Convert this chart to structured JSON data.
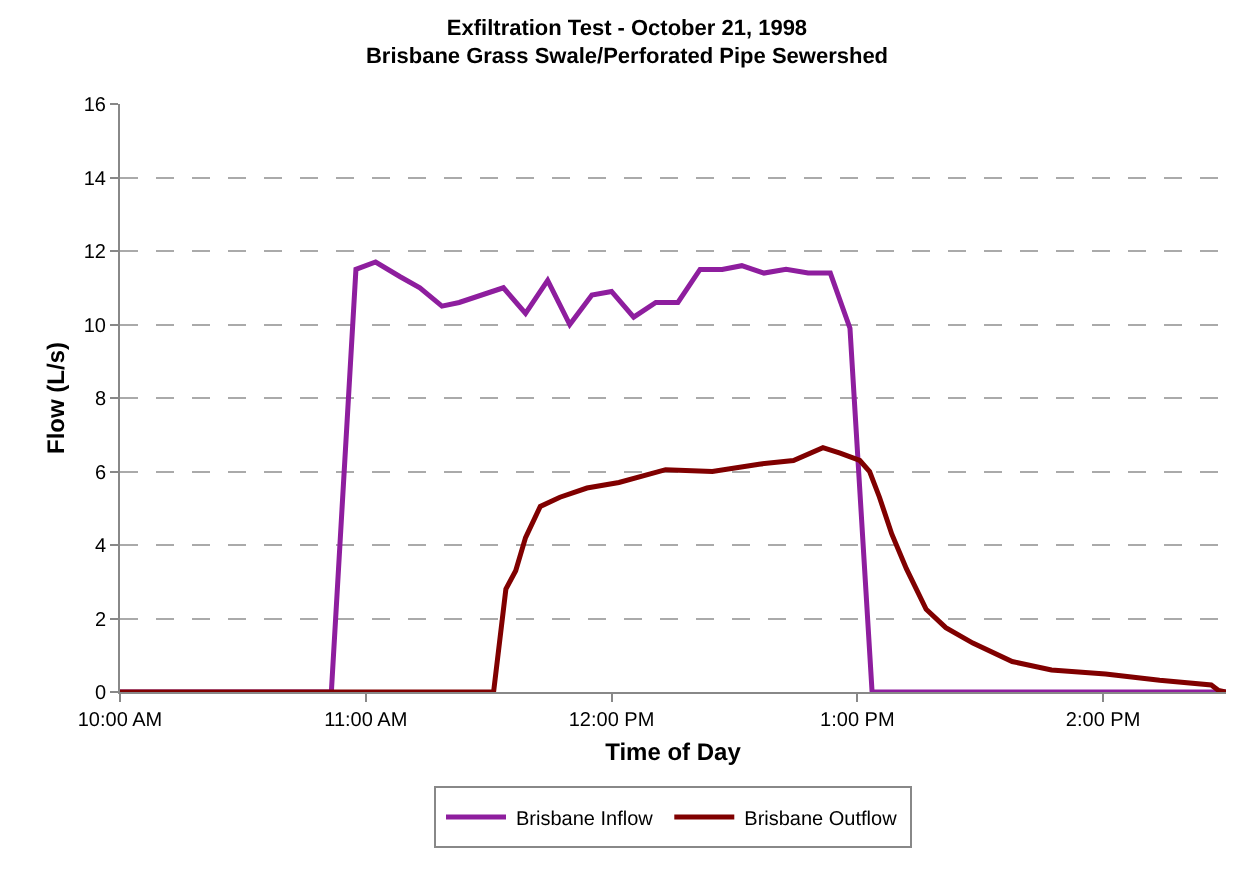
{
  "chart_data": {
    "type": "line",
    "title": "Exfiltration Test - October 21, 1998",
    "subtitle": "Brisbane Grass Swale/Perforated Pipe Sewershed",
    "xlabel": "Time of Day",
    "ylabel": "Flow (L/s)",
    "xlim": [
      10,
      14.5
    ],
    "xticks": [
      {
        "value": 10,
        "label": "10:00 AM"
      },
      {
        "value": 11,
        "label": "11:00 AM"
      },
      {
        "value": 12,
        "label": "12:00 PM"
      },
      {
        "value": 13,
        "label": "1:00 PM"
      },
      {
        "value": 14,
        "label": "2:00 PM"
      }
    ],
    "ylim": [
      0,
      16
    ],
    "yticks": [
      0,
      2,
      4,
      6,
      8,
      10,
      12,
      14,
      16
    ],
    "grid": "y",
    "legend": "bottom",
    "line_style": "solid",
    "marker": "none",
    "series": [
      {
        "name": "Brisbane Inflow",
        "color": "#8e1e9e",
        "x": [
          10,
          10.86,
          10.96,
          11.04,
          11.14,
          11.22,
          11.31,
          11.38,
          11.56,
          11.65,
          11.74,
          11.83,
          11.92,
          12.0,
          12.09,
          12.18,
          12.27,
          12.36,
          12.45,
          12.53,
          12.62,
          12.71,
          12.8,
          12.89,
          12.97,
          13.06,
          14.5
        ],
        "values": [
          0,
          0,
          11.5,
          11.7,
          11.3,
          11.0,
          10.5,
          10.6,
          11.0,
          10.3,
          11.2,
          10.0,
          10.8,
          10.9,
          10.2,
          10.6,
          10.6,
          11.5,
          11.5,
          11.6,
          11.4,
          11.5,
          11.4,
          11.4,
          9.9,
          0,
          0
        ]
      },
      {
        "name": "Brisbane Outflow",
        "color": "#800000",
        "x": [
          10,
          11.52,
          11.57,
          11.61,
          11.65,
          11.71,
          11.79,
          11.9,
          12.03,
          12.22,
          12.41,
          12.6,
          12.74,
          12.86,
          12.93,
          13.01,
          13.05,
          13.09,
          13.14,
          13.2,
          13.28,
          13.36,
          13.47,
          13.63,
          13.79,
          14.01,
          14.23,
          14.44,
          14.47,
          14.5
        ],
        "values": [
          0,
          0,
          2.8,
          3.3,
          4.2,
          5.05,
          5.3,
          5.55,
          5.7,
          6.05,
          6.0,
          6.2,
          6.3,
          6.65,
          6.5,
          6.3,
          6.0,
          5.3,
          4.3,
          3.35,
          2.25,
          1.75,
          1.33,
          0.83,
          0.6,
          0.49,
          0.32,
          0.19,
          0.04,
          0
        ]
      }
    ]
  }
}
